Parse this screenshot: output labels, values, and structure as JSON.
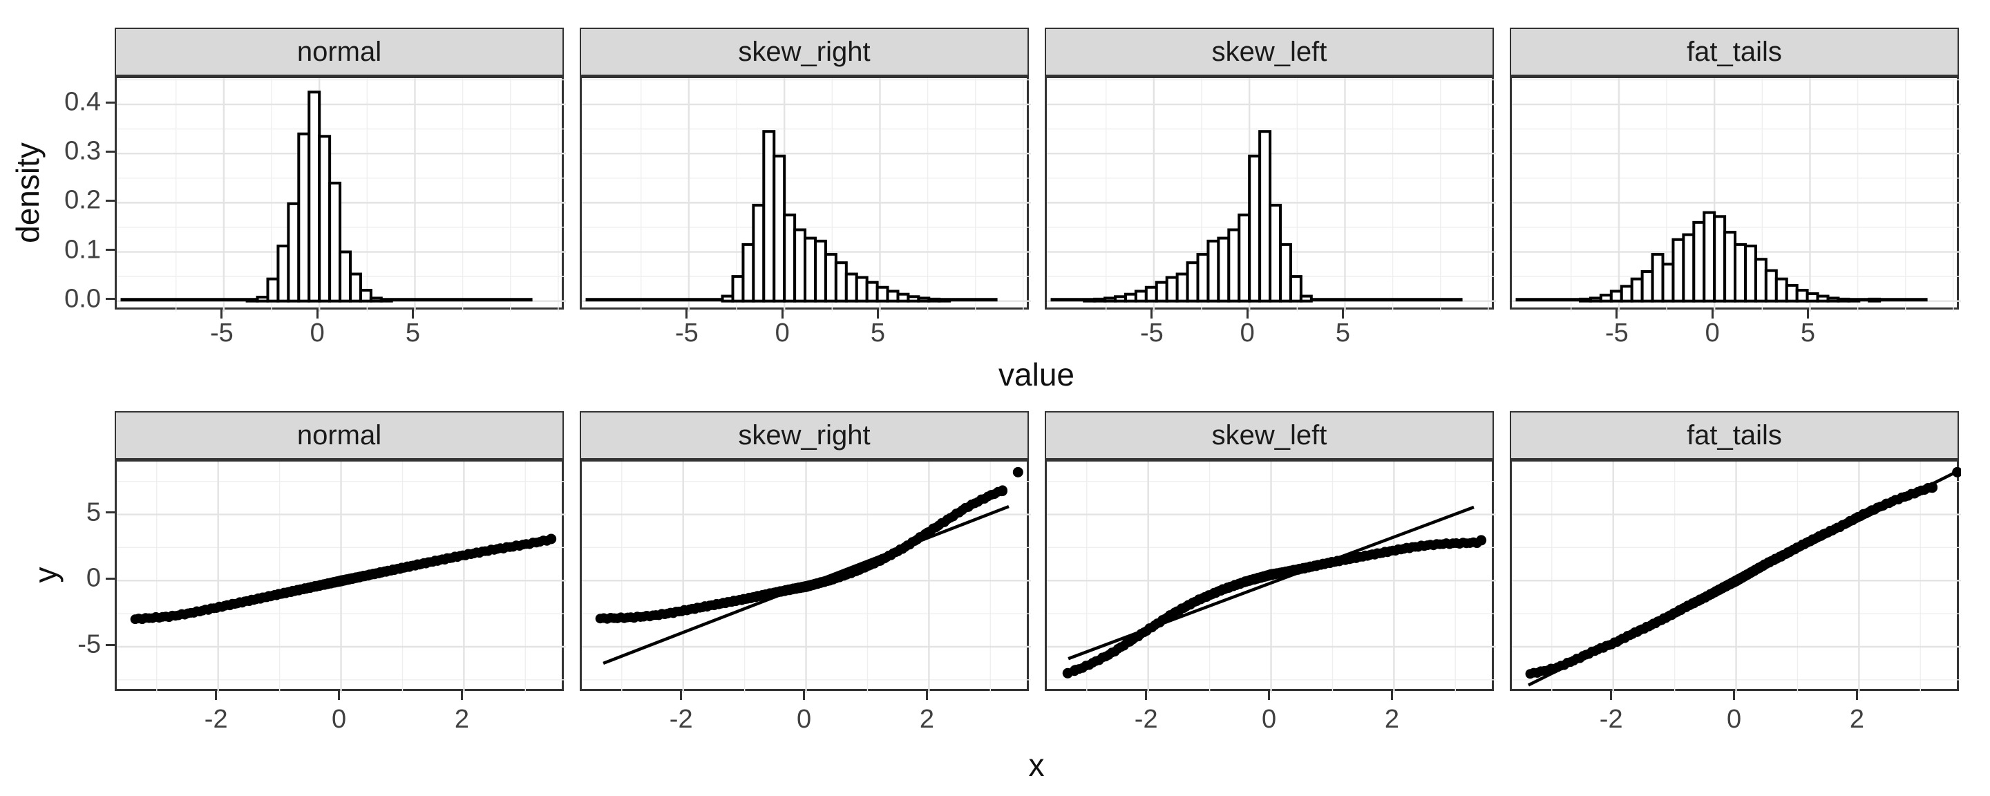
{
  "figure": {
    "kind": "faceted statistical plots (ggplot2 style), 2 rows x 4 facet columns",
    "facet_labels": [
      "normal",
      "skew_right",
      "skew_left",
      "fat_tails"
    ],
    "strip_bg": "#d9d9d9",
    "panel_border": "#333333",
    "grid_major_color": "#e3e3e3",
    "grid_minor_color": "#efefef",
    "data_color": "#000000",
    "axis_text_color": "#404040"
  },
  "chart_data": [
    {
      "type": "bar",
      "subtype": "histogram-row",
      "title": "",
      "xlabel": "value",
      "ylabel": "density",
      "facets": [
        "normal",
        "skew_right",
        "skew_left",
        "fat_tails"
      ],
      "x_range": [
        -10.6,
        12.9
      ],
      "y_range": [
        -0.0215,
        0.4535
      ],
      "x_ticks": [
        {
          "v": -5,
          "label": "-5"
        },
        {
          "v": 0,
          "label": "0"
        },
        {
          "v": 5,
          "label": "5"
        }
      ],
      "x_minor": [
        -7.5,
        -2.5,
        2.5,
        7.5,
        10,
        12.5
      ],
      "y_ticks": [
        {
          "v": 0.0,
          "label": "0.0"
        },
        {
          "v": 0.1,
          "label": "0.1"
        },
        {
          "v": 0.2,
          "label": "0.2"
        },
        {
          "v": 0.3,
          "label": "0.3"
        },
        {
          "v": 0.4,
          "label": "0.4"
        }
      ],
      "y_minor": [
        0.05,
        0.15,
        0.25,
        0.35,
        0.45
      ],
      "grid": true,
      "binwidth": 0.54,
      "baseline_extent": [
        -10.4,
        11.15
      ],
      "series": [
        {
          "name": "normal",
          "bars": [
            [
              -3.51,
              0.002
            ],
            [
              -2.97,
              0.008
            ],
            [
              -2.43,
              0.045
            ],
            [
              -1.89,
              0.112
            ],
            [
              -1.35,
              0.198
            ],
            [
              -0.81,
              0.34
            ],
            [
              -0.27,
              0.425
            ],
            [
              0.27,
              0.335
            ],
            [
              0.81,
              0.24
            ],
            [
              1.35,
              0.1
            ],
            [
              1.89,
              0.055
            ],
            [
              2.43,
              0.022
            ],
            [
              2.97,
              0.006
            ],
            [
              3.51,
              0.002
            ]
          ]
        },
        {
          "name": "skew_right",
          "bars": [
            [
              -2.97,
              0.01
            ],
            [
              -2.43,
              0.05
            ],
            [
              -1.89,
              0.115
            ],
            [
              -1.35,
              0.195
            ],
            [
              -0.81,
              0.345
            ],
            [
              -0.27,
              0.295
            ],
            [
              0.27,
              0.175
            ],
            [
              0.81,
              0.145
            ],
            [
              1.35,
              0.128
            ],
            [
              1.89,
              0.122
            ],
            [
              2.43,
              0.095
            ],
            [
              2.97,
              0.078
            ],
            [
              3.51,
              0.055
            ],
            [
              4.05,
              0.048
            ],
            [
              4.59,
              0.038
            ],
            [
              5.13,
              0.028
            ],
            [
              5.67,
              0.02
            ],
            [
              6.21,
              0.014
            ],
            [
              6.75,
              0.009
            ],
            [
              7.29,
              0.006
            ],
            [
              7.83,
              0.004
            ],
            [
              8.37,
              0.003
            ]
          ]
        },
        {
          "name": "skew_left",
          "bars": [
            [
              -8.37,
              0.003
            ],
            [
              -7.83,
              0.004
            ],
            [
              -7.29,
              0.006
            ],
            [
              -6.75,
              0.009
            ],
            [
              -6.21,
              0.014
            ],
            [
              -5.67,
              0.02
            ],
            [
              -5.13,
              0.028
            ],
            [
              -4.59,
              0.038
            ],
            [
              -4.05,
              0.048
            ],
            [
              -3.51,
              0.055
            ],
            [
              -2.97,
              0.078
            ],
            [
              -2.43,
              0.095
            ],
            [
              -1.89,
              0.122
            ],
            [
              -1.35,
              0.128
            ],
            [
              -0.81,
              0.145
            ],
            [
              -0.27,
              0.175
            ],
            [
              0.27,
              0.295
            ],
            [
              0.81,
              0.345
            ],
            [
              1.35,
              0.195
            ],
            [
              1.89,
              0.115
            ],
            [
              2.43,
              0.05
            ],
            [
              2.97,
              0.01
            ]
          ]
        },
        {
          "name": "fat_tails",
          "bars": [
            [
              -6.75,
              0.004
            ],
            [
              -6.21,
              0.006
            ],
            [
              -5.67,
              0.012
            ],
            [
              -5.13,
              0.02
            ],
            [
              -4.59,
              0.03
            ],
            [
              -4.05,
              0.045
            ],
            [
              -3.51,
              0.06
            ],
            [
              -2.97,
              0.095
            ],
            [
              -2.43,
              0.075
            ],
            [
              -1.89,
              0.125
            ],
            [
              -1.35,
              0.135
            ],
            [
              -0.81,
              0.16
            ],
            [
              -0.27,
              0.18
            ],
            [
              0.27,
              0.172
            ],
            [
              0.81,
              0.14
            ],
            [
              1.35,
              0.115
            ],
            [
              1.89,
              0.112
            ],
            [
              2.43,
              0.085
            ],
            [
              2.97,
              0.062
            ],
            [
              3.51,
              0.045
            ],
            [
              4.05,
              0.032
            ],
            [
              4.59,
              0.022
            ],
            [
              5.13,
              0.015
            ],
            [
              5.67,
              0.01
            ],
            [
              6.21,
              0.006
            ],
            [
              6.75,
              0.004
            ],
            [
              7.29,
              0.003
            ],
            [
              8.37,
              0.004
            ]
          ]
        }
      ]
    },
    {
      "type": "scatter",
      "subtype": "qq-row",
      "title": "",
      "xlabel": "x",
      "ylabel": "y",
      "facets": [
        "normal",
        "skew_right",
        "skew_left",
        "fat_tails"
      ],
      "x_range": [
        -3.65,
        3.66
      ],
      "y_range": [
        -8.5,
        9.0
      ],
      "x_ticks": [
        {
          "v": -2,
          "label": "-2"
        },
        {
          "v": 0,
          "label": "0"
        },
        {
          "v": 2,
          "label": "2"
        }
      ],
      "x_minor": [
        -3,
        -1,
        1,
        3
      ],
      "y_ticks": [
        {
          "v": -5,
          "label": "-5"
        },
        {
          "v": 0,
          "label": "0"
        },
        {
          "v": 5,
          "label": "5"
        }
      ],
      "y_minor": [
        -7.5,
        -2.5,
        2.5,
        7.5
      ],
      "grid": true,
      "n_points_per_facet": 250,
      "series": [
        {
          "name": "normal",
          "curve": [
            [
              -3.35,
              -2.92
            ],
            [
              -3.1,
              -2.82
            ],
            [
              -2.8,
              -2.72
            ],
            [
              -2.5,
              -2.5
            ],
            [
              -2.0,
              -2.02
            ],
            [
              -1.5,
              -1.52
            ],
            [
              -1.0,
              -1.02
            ],
            [
              -0.5,
              -0.52
            ],
            [
              0,
              -0.02
            ],
            [
              0.5,
              0.47
            ],
            [
              1.0,
              0.96
            ],
            [
              1.5,
              1.45
            ],
            [
              2.0,
              1.92
            ],
            [
              2.5,
              2.36
            ],
            [
              2.8,
              2.58
            ],
            [
              3.1,
              2.82
            ],
            [
              3.35,
              3.05
            ]
          ],
          "line": [
            [
              -3.4,
              -3.1
            ],
            [
              3.45,
              3.15
            ]
          ],
          "outliers": [
            [
              3.42,
              3.15
            ]
          ]
        },
        {
          "name": "skew_right",
          "curve": [
            [
              -3.35,
              -2.87
            ],
            [
              -3.05,
              -2.82
            ],
            [
              -2.8,
              -2.78
            ],
            [
              -2.5,
              -2.65
            ],
            [
              -2.2,
              -2.45
            ],
            [
              -1.8,
              -2.1
            ],
            [
              -1.4,
              -1.75
            ],
            [
              -1.0,
              -1.4
            ],
            [
              -0.6,
              -1.0
            ],
            [
              -0.2,
              -0.62
            ],
            [
              0,
              -0.45
            ],
            [
              0.4,
              0.05
            ],
            [
              0.8,
              0.7
            ],
            [
              1.2,
              1.5
            ],
            [
              1.6,
              2.5
            ],
            [
              2.0,
              3.7
            ],
            [
              2.3,
              4.6
            ],
            [
              2.6,
              5.5
            ],
            [
              2.85,
              6.1
            ],
            [
              3.05,
              6.55
            ],
            [
              3.2,
              6.8
            ]
          ],
          "line": [
            [
              -3.3,
              -6.25
            ],
            [
              3.3,
              5.6
            ]
          ],
          "outliers": [
            [
              3.45,
              8.2
            ]
          ]
        },
        {
          "name": "skew_left",
          "curve": [
            [
              -3.2,
              -6.8
            ],
            [
              -3.05,
              -6.55
            ],
            [
              -2.85,
              -6.1
            ],
            [
              -2.6,
              -5.5
            ],
            [
              -2.3,
              -4.6
            ],
            [
              -2.0,
              -3.7
            ],
            [
              -1.6,
              -2.5
            ],
            [
              -1.2,
              -1.5
            ],
            [
              -0.8,
              -0.7
            ],
            [
              -0.4,
              -0.05
            ],
            [
              0,
              0.45
            ],
            [
              0.2,
              0.62
            ],
            [
              0.6,
              1.0
            ],
            [
              1.0,
              1.4
            ],
            [
              1.4,
              1.75
            ],
            [
              1.8,
              2.1
            ],
            [
              2.2,
              2.45
            ],
            [
              2.5,
              2.65
            ],
            [
              2.8,
              2.78
            ],
            [
              3.05,
              2.82
            ],
            [
              3.35,
              2.87
            ]
          ],
          "line": [
            [
              -3.3,
              -5.9
            ],
            [
              3.3,
              5.55
            ]
          ],
          "outliers": [
            [
              -3.31,
              -7.0
            ],
            [
              3.42,
              3.05
            ]
          ]
        },
        {
          "name": "fat_tails",
          "curve": [
            [
              -3.4,
              -7.1
            ],
            [
              -3.1,
              -6.8
            ],
            [
              -2.9,
              -6.55
            ],
            [
              -2.6,
              -5.95
            ],
            [
              -2.3,
              -5.3
            ],
            [
              -2.0,
              -4.75
            ],
            [
              -1.7,
              -4.05
            ],
            [
              -1.4,
              -3.4
            ],
            [
              -1.1,
              -2.7
            ],
            [
              -0.8,
              -1.95
            ],
            [
              -0.5,
              -1.25
            ],
            [
              -0.2,
              -0.5
            ],
            [
              0,
              -0.02
            ],
            [
              0.2,
              0.5
            ],
            [
              0.5,
              1.3
            ],
            [
              0.8,
              2.0
            ],
            [
              1.1,
              2.75
            ],
            [
              1.4,
              3.45
            ],
            [
              1.7,
              4.1
            ],
            [
              2.0,
              4.85
            ],
            [
              2.3,
              5.5
            ],
            [
              2.6,
              6.1
            ],
            [
              2.9,
              6.6
            ],
            [
              3.1,
              6.95
            ],
            [
              3.2,
              7.05
            ]
          ],
          "line": [
            [
              -3.38,
              -7.9
            ],
            [
              3.62,
              8.3
            ]
          ],
          "outliers": [
            [
              3.6,
              8.2
            ]
          ]
        }
      ]
    }
  ]
}
